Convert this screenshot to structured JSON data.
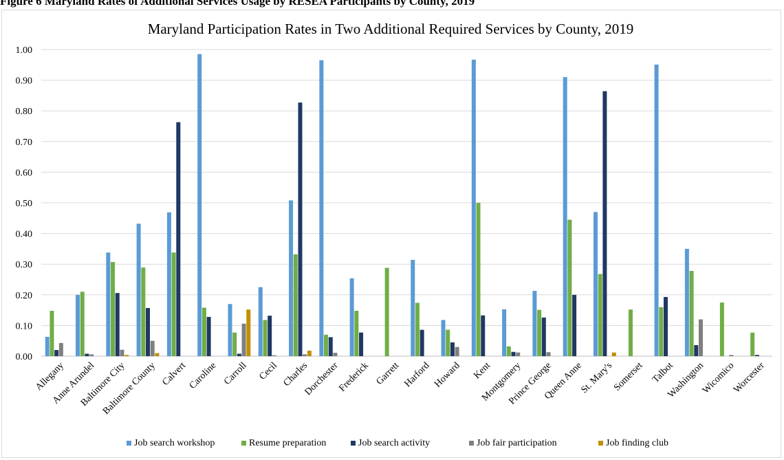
{
  "caption": "Figure 6 Maryland Rates of Additional Services Usage by RESEA Participants by County, 2019",
  "chart_data": {
    "type": "bar",
    "title": "Maryland Participation Rates in Two Additional Required Services by County, 2019",
    "xlabel": "",
    "ylabel": "",
    "ylim": [
      0,
      1.0
    ],
    "yticks": [
      "0.00",
      "0.10",
      "0.20",
      "0.30",
      "0.40",
      "0.50",
      "0.60",
      "0.70",
      "0.80",
      "0.90",
      "1.00"
    ],
    "grid": true,
    "legend": "bottom",
    "categories": [
      "Allegany",
      "Anne Arundel",
      "Baltimore City",
      "Baltimore County",
      "Calvert",
      "Caroline",
      "Carroll",
      "Cecil",
      "Charles",
      "Dorchester",
      "Frederick",
      "Garrett",
      "Harford",
      "Howard",
      "Kent",
      "Montgomery",
      "Prince George",
      "Queen Anne",
      "St. Mary's",
      "Somerset",
      "Talbot",
      "Washington",
      "Wicomico",
      "Worcester"
    ],
    "series": [
      {
        "name": "Job search workshop",
        "color": "#5b9bd5",
        "values": [
          0.063,
          0.2,
          0.338,
          0.432,
          0.469,
          0.985,
          0.17,
          0.225,
          0.508,
          0.965,
          0.254,
          0,
          0.314,
          0.118,
          0.967,
          0.153,
          0.213,
          0.91,
          0.47,
          0,
          0.951,
          0.35,
          0,
          0
        ]
      },
      {
        "name": "Resume preparation",
        "color": "#70ad47",
        "values": [
          0.148,
          0.21,
          0.307,
          0.289,
          0.338,
          0.158,
          0.077,
          0.118,
          0.332,
          0.07,
          0.148,
          0.288,
          0.174,
          0.086,
          0.5,
          0.032,
          0.151,
          0.445,
          0.268,
          0.152,
          0.16,
          0.278,
          0.175,
          0.077
        ]
      },
      {
        "name": "Job search activity",
        "color": "#203864",
        "values": [
          0.02,
          0.008,
          0.206,
          0.157,
          0.763,
          0.128,
          0.008,
          0.132,
          0.827,
          0.062,
          0.077,
          0,
          0.086,
          0.045,
          0.133,
          0.014,
          0.126,
          0.2,
          0.864,
          0,
          0.193,
          0.036,
          0,
          0.004
        ]
      },
      {
        "name": "Job fair participation",
        "color": "#7f7f7f",
        "values": [
          0.043,
          0.006,
          0.021,
          0.05,
          0,
          0,
          0.106,
          0.003,
          0.006,
          0.011,
          0,
          0,
          0,
          0.03,
          0,
          0.012,
          0.013,
          0,
          0,
          0,
          0,
          0.12,
          0.004,
          0
        ]
      },
      {
        "name": "Job finding club",
        "color": "#bf9000",
        "values": [
          0,
          0,
          0.004,
          0.01,
          0,
          0,
          0.152,
          0,
          0.018,
          0,
          0,
          0,
          0,
          0,
          0,
          0,
          0,
          0,
          0.012,
          0,
          0,
          0,
          0,
          0
        ]
      }
    ]
  }
}
